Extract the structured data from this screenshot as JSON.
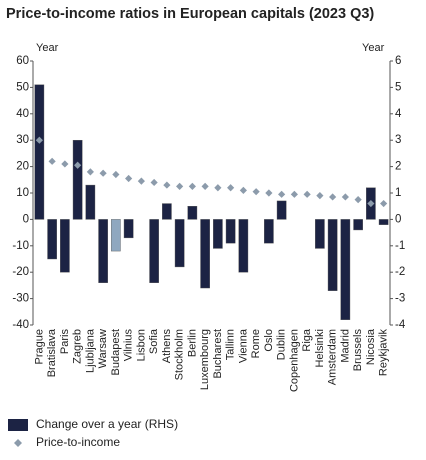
{
  "chart_data": {
    "type": "bar",
    "title": "Price-to-income ratios in European capitals (2023 Q3)",
    "y_label": "Year",
    "y2_label": "Year",
    "categories": [
      "Prague",
      "Bratislava",
      "Paris",
      "Zagreb",
      "Ljubljana",
      "Warsaw",
      "Budapest",
      "Vilnius",
      "Lisbon",
      "Sofia",
      "Athens",
      "Stockholm",
      "Berlin",
      "Luxembourg",
      "Bucharest",
      "Tallinn",
      "Vienna",
      "Rome",
      "Oslo",
      "Dublin",
      "Copenhagen",
      "Riga",
      "Helsinki",
      "Amsterdam",
      "Madrid",
      "Brussels",
      "Nicosia",
      "Reykjavik"
    ],
    "series": [
      {
        "name": "Change over a year (RHS)",
        "type": "bar",
        "axis": "y2",
        "color": "#1c2344",
        "colors": [
          "#1c2344",
          "#1c2344",
          "#1c2344",
          "#1c2344",
          "#1c2344",
          "#1c2344",
          "#8fa8c0",
          "#1c2344",
          "#1c2344",
          "#1c2344",
          "#1c2344",
          "#1c2344",
          "#1c2344",
          "#1c2344",
          "#1c2344",
          "#1c2344",
          "#1c2344",
          "#1c2344",
          "#1c2344",
          "#1c2344",
          "#1c2344",
          "#1c2344",
          "#1c2344",
          "#1c2344",
          "#1c2344",
          "#1c2344",
          "#1c2344",
          "#1c2344"
        ],
        "values": [
          5.1,
          -1.5,
          -2.0,
          3.0,
          1.3,
          -2.4,
          -1.2,
          -0.7,
          0,
          -2.4,
          0.6,
          -1.8,
          0.5,
          -2.6,
          -1.1,
          -0.9,
          -2.0,
          0,
          -0.9,
          0.7,
          0,
          0,
          -1.1,
          -2.7,
          -3.8,
          -0.4,
          1.2,
          -0.2
        ]
      },
      {
        "name": "Price-to-income",
        "type": "scatter",
        "color": "#8c9bab",
        "values": [
          30,
          22,
          21,
          20.5,
          18,
          17.5,
          17,
          15.5,
          14.5,
          14,
          13,
          12.5,
          12.5,
          12.5,
          12,
          12,
          11,
          10.5,
          10,
          9.5,
          9.5,
          9.5,
          9,
          8.5,
          8.5,
          7.5,
          6,
          6
        ]
      }
    ],
    "ylim": [
      -40,
      60
    ],
    "yticks": [
      -40,
      -30,
      -20,
      -10,
      0,
      10,
      20,
      30,
      40,
      50,
      60
    ],
    "y2lim": [
      -4,
      6
    ],
    "y2ticks": [
      -4,
      -3,
      -2,
      -1,
      0,
      1,
      2,
      3,
      4,
      5,
      6
    ]
  }
}
